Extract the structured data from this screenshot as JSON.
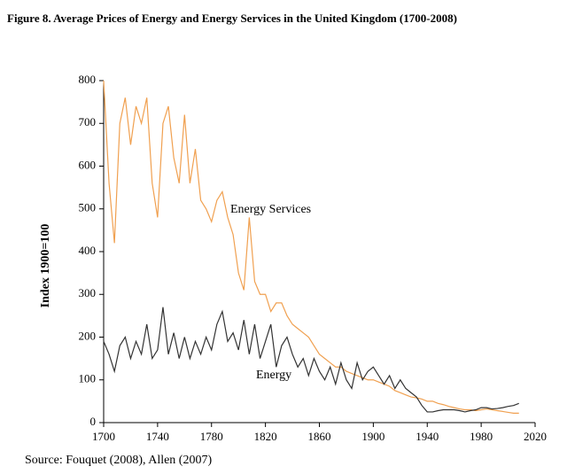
{
  "chart_data": {
    "type": "line",
    "title": "Figure 8. Average Prices of Energy and Energy Services in the United Kingdom (1700-2008)",
    "ylabel": "Index 1900=100",
    "source": "Source: Fouquet (2008), Allen (2007)",
    "annotations": [
      "Energy Services",
      "Energy"
    ],
    "x": [
      1700,
      1704,
      1708,
      1712,
      1716,
      1720,
      1724,
      1728,
      1732,
      1736,
      1740,
      1744,
      1748,
      1752,
      1756,
      1760,
      1764,
      1768,
      1772,
      1776,
      1780,
      1784,
      1788,
      1792,
      1796,
      1800,
      1804,
      1808,
      1812,
      1816,
      1820,
      1824,
      1828,
      1832,
      1836,
      1840,
      1844,
      1848,
      1852,
      1856,
      1860,
      1864,
      1868,
      1872,
      1876,
      1880,
      1884,
      1888,
      1892,
      1896,
      1900,
      1904,
      1908,
      1912,
      1916,
      1920,
      1924,
      1928,
      1932,
      1936,
      1940,
      1944,
      1948,
      1952,
      1956,
      1960,
      1964,
      1968,
      1972,
      1976,
      1980,
      1984,
      1988,
      1992,
      1996,
      2000,
      2004,
      2008
    ],
    "series": [
      {
        "name": "Energy Services",
        "color": "#f0a050",
        "values": [
          800,
          560,
          420,
          700,
          760,
          650,
          740,
          700,
          760,
          560,
          480,
          700,
          740,
          620,
          560,
          720,
          560,
          640,
          520,
          500,
          470,
          520,
          540,
          480,
          440,
          350,
          310,
          480,
          330,
          300,
          300,
          260,
          280,
          280,
          250,
          230,
          220,
          210,
          200,
          180,
          160,
          150,
          140,
          130,
          130,
          120,
          115,
          110,
          105,
          100,
          100,
          95,
          90,
          85,
          75,
          70,
          65,
          60,
          58,
          55,
          50,
          50,
          45,
          42,
          38,
          35,
          32,
          30,
          30,
          28,
          30,
          32,
          30,
          28,
          26,
          24,
          22,
          22
        ]
      },
      {
        "name": "Energy",
        "color": "#333333",
        "values": [
          190,
          160,
          120,
          180,
          200,
          150,
          190,
          160,
          230,
          150,
          170,
          270,
          160,
          210,
          150,
          200,
          150,
          190,
          160,
          200,
          170,
          230,
          260,
          190,
          210,
          170,
          240,
          160,
          230,
          150,
          190,
          230,
          130,
          180,
          200,
          160,
          130,
          150,
          110,
          150,
          120,
          100,
          130,
          90,
          140,
          100,
          80,
          140,
          100,
          120,
          130,
          110,
          90,
          110,
          80,
          100,
          80,
          70,
          60,
          40,
          25,
          25,
          28,
          30,
          30,
          30,
          28,
          25,
          28,
          30,
          35,
          35,
          32,
          33,
          35,
          38,
          40,
          45
        ]
      }
    ],
    "xlim": [
      1700,
      2020
    ],
    "xticks": [
      1700,
      1740,
      1780,
      1820,
      1860,
      1900,
      1940,
      1980,
      2020
    ],
    "ylim": [
      0,
      800
    ],
    "yticks": [
      0,
      100,
      200,
      300,
      400,
      500,
      600,
      700,
      800
    ]
  }
}
